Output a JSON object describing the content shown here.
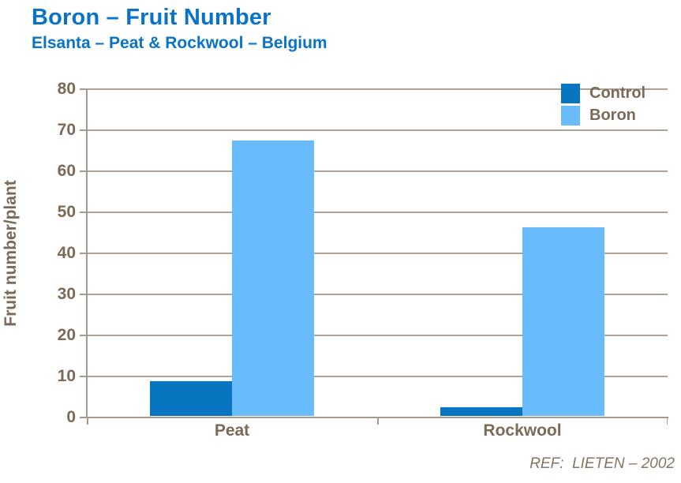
{
  "slide": {
    "title": "Boron – Fruit Number",
    "subtitle": "Elsanta – Peat & Rockwool – Belgium",
    "reference": "REF:  LIETEN – 2002"
  },
  "chart_data": {
    "type": "bar",
    "title": "Boron – Fruit Number",
    "subtitle": "Elsanta – Peat & Rockwool – Belgium",
    "categories": [
      "Peat",
      "Rockwool"
    ],
    "series": [
      {
        "name": "Control",
        "color": "#0875C0",
        "values": [
          8.4,
          2.2
        ]
      },
      {
        "name": "Boron",
        "color": "#68BCFB",
        "values": [
          67.2,
          45.9
        ]
      }
    ],
    "xlabel": "",
    "ylabel": "Fruit number/plant",
    "ylim": [
      0,
      80
    ],
    "yticks": [
      0,
      10,
      20,
      30,
      40,
      50,
      60,
      70,
      80
    ],
    "grid": "horizontal-only",
    "legend_position": "top-right-inside"
  },
  "colors": {
    "title_blue": "#0A73C8",
    "text_brown": "#7A6A57",
    "gridline": "#ADA297",
    "axis": "#A59A8E",
    "control_bar": "#0875C0",
    "boron_bar": "#68BCFB",
    "reference_text": "#847663",
    "background": "#ffffff"
  }
}
